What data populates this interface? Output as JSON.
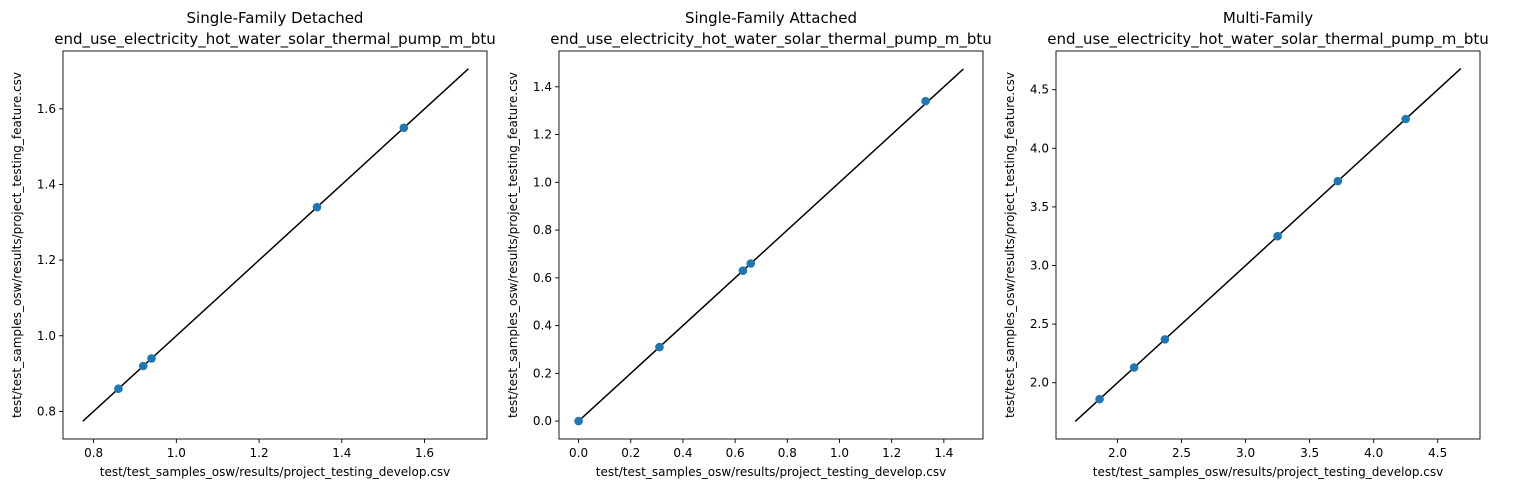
{
  "chart_data": [
    {
      "type": "scatter",
      "title": "Single-Family Detached",
      "subtitle": "end_use_electricity_hot_water_solar_thermal_pump_m_btu",
      "xlabel": "test/test_samples_osw/results/project_testing_develop.csv",
      "ylabel": "test/test_samples_osw/results/project_testing_feature.csv",
      "xlim": [
        0.726,
        1.751
      ],
      "ylim": [
        0.727,
        1.753
      ],
      "xticks": [
        "0.8",
        "1.0",
        "1.2",
        "1.4",
        "1.6"
      ],
      "yticks": [
        "0.8",
        "1.0",
        "1.2",
        "1.4",
        "1.6"
      ],
      "points": [
        {
          "x": 0.86,
          "y": 0.86
        },
        {
          "x": 0.92,
          "y": 0.92
        },
        {
          "x": 0.94,
          "y": 0.94
        },
        {
          "x": 1.34,
          "y": 1.34
        },
        {
          "x": 1.55,
          "y": 1.55
        }
      ],
      "reference_line": [
        0.774,
        1.706
      ],
      "marker_color": "#1f77b4",
      "line_color": "#000000",
      "grid": false
    },
    {
      "type": "scatter",
      "title": "Single-Family Attached",
      "subtitle": "end_use_electricity_hot_water_solar_thermal_pump_m_btu",
      "xlabel": "test/test_samples_osw/results/project_testing_develop.csv",
      "ylabel": "test/test_samples_osw/results/project_testing_feature.csv",
      "xlim": [
        -0.075,
        1.55
      ],
      "ylim": [
        -0.075,
        1.55
      ],
      "xticks": [
        "0.0",
        "0.2",
        "0.4",
        "0.6",
        "0.8",
        "1.0",
        "1.2",
        "1.4"
      ],
      "yticks": [
        "0.0",
        "0.2",
        "0.4",
        "0.6",
        "0.8",
        "1.0",
        "1.2",
        "1.4"
      ],
      "points": [
        {
          "x": 0.0,
          "y": 0.0
        },
        {
          "x": 0.31,
          "y": 0.31
        },
        {
          "x": 0.63,
          "y": 0.63
        },
        {
          "x": 0.66,
          "y": 0.66
        },
        {
          "x": 1.33,
          "y": 1.34
        }
      ],
      "reference_line": [
        0.0,
        1.475
      ],
      "marker_color": "#1f77b4",
      "line_color": "#000000",
      "grid": false
    },
    {
      "type": "scatter",
      "title": "Multi-Family",
      "subtitle": "end_use_electricity_hot_water_solar_thermal_pump_m_btu",
      "xlabel": "test/test_samples_osw/results/project_testing_develop.csv",
      "ylabel": "test/test_samples_osw/results/project_testing_feature.csv",
      "xlim": [
        1.52,
        4.83
      ],
      "ylim": [
        1.52,
        4.83
      ],
      "xticks": [
        "2.0",
        "2.5",
        "3.0",
        "3.5",
        "4.0",
        "4.5"
      ],
      "yticks": [
        "2.0",
        "2.5",
        "3.0",
        "3.5",
        "4.0",
        "4.5"
      ],
      "points": [
        {
          "x": 1.86,
          "y": 1.86
        },
        {
          "x": 2.13,
          "y": 2.13
        },
        {
          "x": 2.37,
          "y": 2.37
        },
        {
          "x": 3.25,
          "y": 3.25
        },
        {
          "x": 3.72,
          "y": 3.72
        },
        {
          "x": 4.25,
          "y": 4.25
        }
      ],
      "reference_line": [
        1.67,
        4.68
      ],
      "marker_color": "#1f77b4",
      "line_color": "#000000",
      "grid": false
    }
  ]
}
